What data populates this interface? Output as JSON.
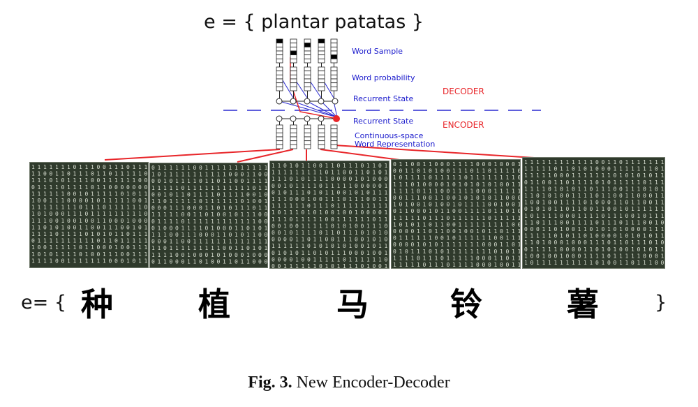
{
  "top_formula": "e = { plantar patatas }",
  "labels": {
    "word_sample": "Word Sample",
    "word_probability": "Word probability",
    "recurrent_state_decoder": "Recurrent State",
    "decoder": "DECODER",
    "recurrent_state_encoder": "Recurrent State",
    "encoder": "ENCODER",
    "continuous_space_line1": "Continuous-space",
    "continuous_space_line2": "Word Representation"
  },
  "bottom_formula": {
    "open": "e= {",
    "close": "}",
    "characters": [
      "种",
      "植",
      "马",
      "铃",
      "薯"
    ]
  },
  "caption": {
    "label": "Fig. 3.",
    "text": "New Encoder-Decoder"
  },
  "colors": {
    "label_blue": "#1a1acc",
    "label_red": "#e8262a",
    "panel_bg": "#2f3a2c",
    "digit_color": "#d9dfd2"
  }
}
